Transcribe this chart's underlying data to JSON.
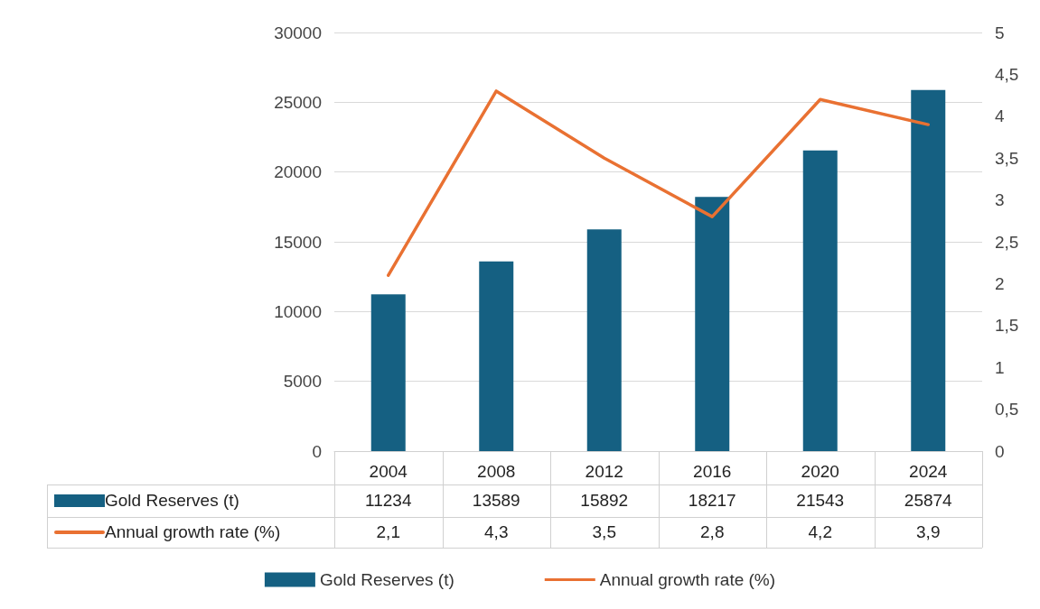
{
  "chart_data": {
    "type": "bar",
    "categories": [
      "2004",
      "2008",
      "2012",
      "2016",
      "2020",
      "2024"
    ],
    "series": [
      {
        "name": "Gold Reserves (t)",
        "color": "#156082",
        "values": [
          11234,
          13589,
          15892,
          18217,
          21543,
          25874
        ],
        "value_labels": [
          "11234",
          "13589",
          "15892",
          "18217",
          "21543",
          "25874"
        ]
      },
      {
        "name": "Annual growth rate (%)",
        "type": "line",
        "axis": "y2",
        "color": "#e97132",
        "values": [
          2.1,
          4.3,
          3.5,
          2.8,
          4.2,
          3.9
        ],
        "value_labels": [
          "2,1",
          "4,3",
          "3,5",
          "2,8",
          "4,2",
          "3,9"
        ]
      }
    ],
    "ylim": [
      0,
      30000
    ],
    "yticks": [
      0,
      5000,
      10000,
      15000,
      20000,
      25000,
      30000
    ],
    "y2lim": [
      0,
      5
    ],
    "y2ticks": [
      0,
      {
        "value": 0.5,
        "label": "0,5"
      },
      1,
      {
        "value": 1.5,
        "label": "1,5"
      },
      2,
      {
        "value": 2.5,
        "label": "2,5"
      },
      3,
      {
        "value": 3.5,
        "label": "3,5"
      },
      4,
      {
        "value": 4.5,
        "label": "4,5"
      },
      5
    ],
    "grid": "y",
    "legend": "bottom",
    "marker": "none",
    "line_style": "solid"
  }
}
